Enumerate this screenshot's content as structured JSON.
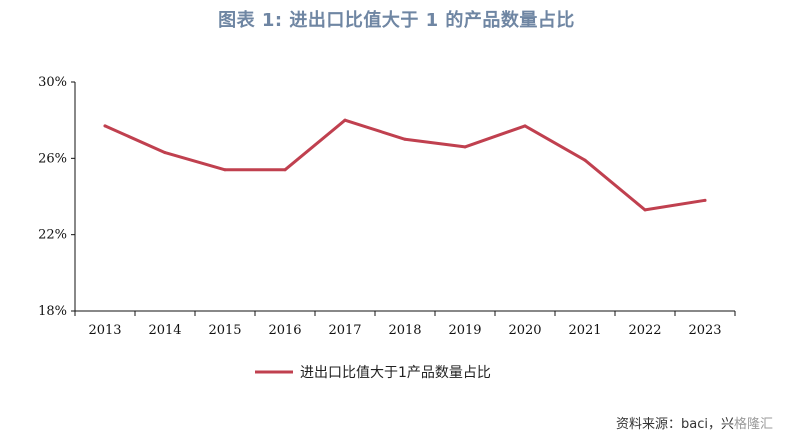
{
  "title": "图表 1:   进出口比值大于 1 的产品数量占比",
  "source_text": "资料来源：baci，兴",
  "watermark_text": "格隆汇",
  "chart_data": {
    "type": "line",
    "title": "图表 1:   进出口比值大于 1 的产品数量占比",
    "xlabel": "",
    "ylabel": "",
    "categories": [
      "2013",
      "2014",
      "2015",
      "2016",
      "2017",
      "2018",
      "2019",
      "2020",
      "2021",
      "2022",
      "2023"
    ],
    "series": [
      {
        "name": "进出口比值大于1产品数量占比",
        "color": "#c0404f",
        "values": [
          27.7,
          26.3,
          25.4,
          25.4,
          28.0,
          27.0,
          26.6,
          27.7,
          25.9,
          23.3,
          23.8
        ]
      }
    ],
    "ylim": [
      18,
      30
    ],
    "yticks": [
      18,
      22,
      26,
      30
    ],
    "ytick_labels": [
      "18%",
      "22%",
      "26%",
      "30%"
    ],
    "legend_position": "bottom",
    "grid": false
  }
}
